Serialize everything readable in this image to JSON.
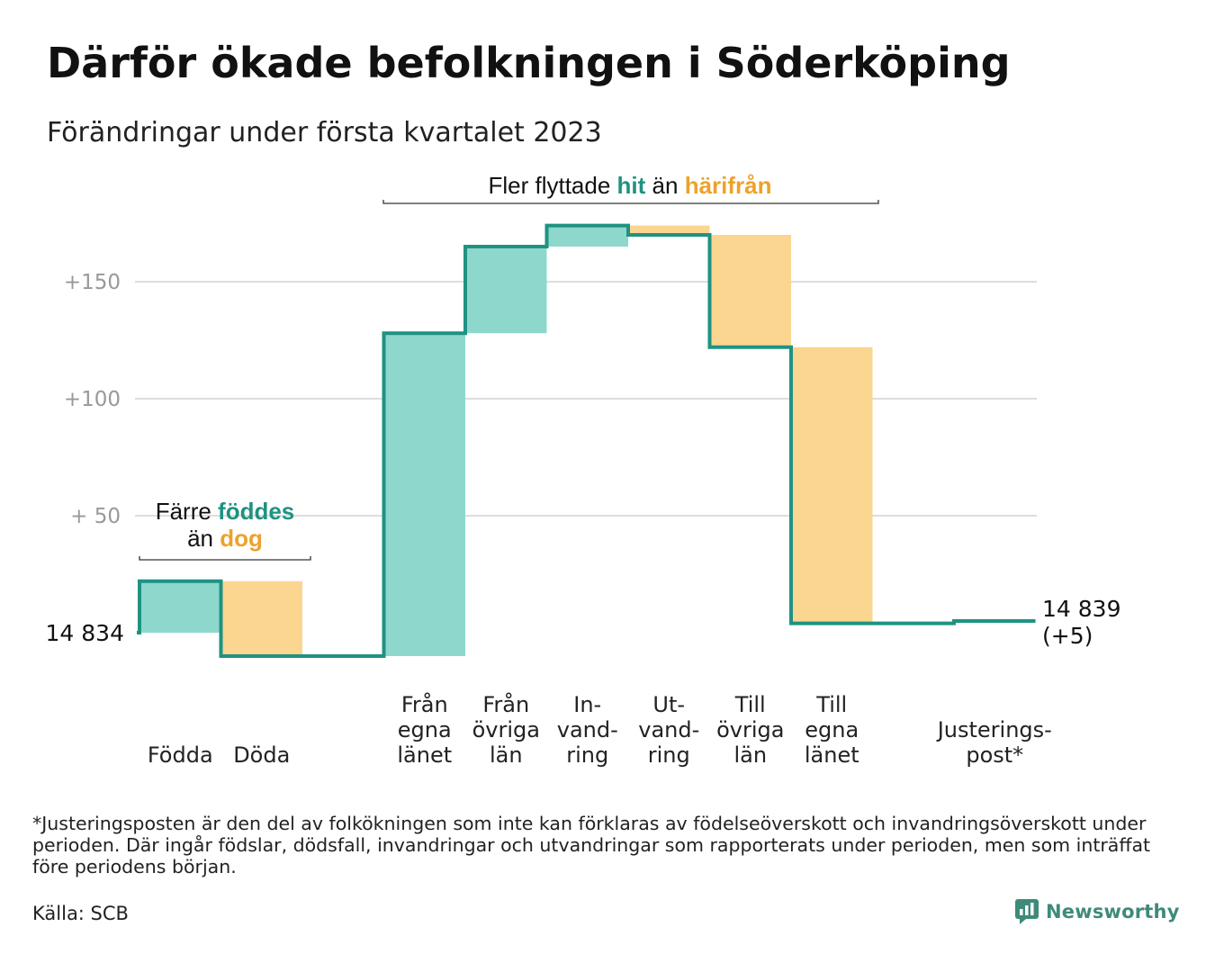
{
  "title": "Därför ökade befolkningen i Söderköping",
  "subtitle": "Förändringar under första kvartalet 2023",
  "colors": {
    "increase": "#8ed7cc",
    "decrease": "#fbd690",
    "line": "#1f9282",
    "accent_hit": "#1f9282",
    "accent_harifran": "#eda22b",
    "grid": "#dddddd",
    "tick": "#999999"
  },
  "chart_data": {
    "type": "waterfall",
    "baseline": 14834,
    "baseline_label": "14 834",
    "end_label": [
      "14 839",
      "(+5)"
    ],
    "y_ticks": [
      {
        "value": 50,
        "label": "+ 50"
      },
      {
        "value": 100,
        "label": "+100"
      },
      {
        "value": 150,
        "label": "+150"
      }
    ],
    "ylim": [
      -12,
      175
    ],
    "steps": [
      {
        "label": [
          "",
          "",
          "Födda"
        ],
        "value": 22,
        "kind": "increase"
      },
      {
        "label": [
          "",
          "",
          "Döda"
        ],
        "value": -32,
        "kind": "decrease"
      },
      {
        "label": [
          "",
          "",
          ""
        ],
        "value": 0,
        "kind": "gap"
      },
      {
        "label": [
          "Från",
          "egna",
          "länet"
        ],
        "value": 138,
        "kind": "increase"
      },
      {
        "label": [
          "Från",
          "övriga",
          "län"
        ],
        "value": 37,
        "kind": "increase"
      },
      {
        "label": [
          "In-",
          "vand-",
          "ring"
        ],
        "value": 9,
        "kind": "increase"
      },
      {
        "label": [
          "Ut-",
          "vand-",
          "ring"
        ],
        "value": -4,
        "kind": "decrease"
      },
      {
        "label": [
          "Till",
          "övriga",
          "län"
        ],
        "value": -48,
        "kind": "decrease"
      },
      {
        "label": [
          "Till",
          "egna",
          "länet"
        ],
        "value": -118,
        "kind": "decrease"
      },
      {
        "label": [
          "",
          "",
          ""
        ],
        "value": 0,
        "kind": "gap"
      },
      {
        "label": [
          "",
          "Justerings-",
          "post*"
        ],
        "value": 1,
        "kind": "adjust"
      }
    ],
    "annotations": {
      "births": {
        "line1_pre": "Färre ",
        "line1_hi": "föddes",
        "line2_pre": "än ",
        "line2_hi": "dog"
      },
      "migration": {
        "pre": "Fler flyttade ",
        "hi1": "hit",
        "mid": " än ",
        "hi2": "härifrån"
      }
    }
  },
  "footnote": "*Justeringsposten är den del av folkökningen som inte kan förklaras av födelseöverskott och invandringsöverskott under perioden. Där ingår födslar, dödsfall, invandringar och utvandringar som rapporterats under perioden, men som inträffat före periodens början.",
  "source": "Källa: SCB",
  "brand": "Newsworthy"
}
